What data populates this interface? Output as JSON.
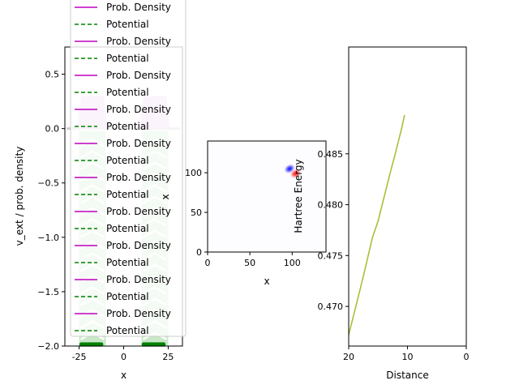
{
  "chart_data": [
    {
      "type": "line",
      "xlabel": "x",
      "ylabel": "v_ext / prob. density",
      "xlim": [
        -33,
        33
      ],
      "ylim": [
        -2.0,
        0.75
      ],
      "xticks": [
        -25,
        0,
        25
      ],
      "yticks": [
        0.5,
        0.0,
        -0.5,
        -1.0,
        -1.5,
        -2.0
      ],
      "ytick_labels": [
        "0.5",
        "0.0",
        "−0.5",
        "−1.0",
        "−1.5",
        "−2.0"
      ],
      "wells": [
        {
          "x_left": -25,
          "x_right": -10,
          "depth": -2.0,
          "density_peak": 0.3
        },
        {
          "x_left": 10,
          "x_right": 25,
          "depth": -2.0,
          "density_peak": 0.3
        }
      ],
      "baseline": 0.0,
      "legend": {
        "placement": "upper-left",
        "entries": [
          {
            "label": "Prob. Density",
            "color": "#bf00bf",
            "style": "solid"
          },
          {
            "label": "Potential",
            "color": "#008000",
            "style": "dashed"
          },
          {
            "label": "Prob. Density",
            "color": "#bf00bf",
            "style": "solid"
          },
          {
            "label": "Potential",
            "color": "#008000",
            "style": "dashed"
          },
          {
            "label": "Prob. Density",
            "color": "#bf00bf",
            "style": "solid"
          },
          {
            "label": "Potential",
            "color": "#008000",
            "style": "dashed"
          },
          {
            "label": "Prob. Density",
            "color": "#bf00bf",
            "style": "solid"
          },
          {
            "label": "Potential",
            "color": "#008000",
            "style": "dashed"
          },
          {
            "label": "Prob. Density",
            "color": "#bf00bf",
            "style": "solid"
          },
          {
            "label": "Potential",
            "color": "#008000",
            "style": "dashed"
          },
          {
            "label": "Prob. Density",
            "color": "#bf00bf",
            "style": "solid"
          },
          {
            "label": "Potential",
            "color": "#008000",
            "style": "dashed"
          },
          {
            "label": "Prob. Density",
            "color": "#bf00bf",
            "style": "solid"
          },
          {
            "label": "Potential",
            "color": "#008000",
            "style": "dashed"
          },
          {
            "label": "Prob. Density",
            "color": "#bf00bf",
            "style": "solid"
          },
          {
            "label": "Potential",
            "color": "#008000",
            "style": "dashed"
          },
          {
            "label": "Prob. Density",
            "color": "#bf00bf",
            "style": "solid"
          },
          {
            "label": "Potential",
            "color": "#008000",
            "style": "dashed"
          },
          {
            "label": "Prob. Density",
            "color": "#bf00bf",
            "style": "solid"
          },
          {
            "label": "Potential",
            "color": "#008000",
            "style": "dashed"
          }
        ]
      }
    },
    {
      "type": "heatmap",
      "xlabel": "x",
      "ylabel": "x",
      "xlim": [
        0,
        140
      ],
      "ylim": [
        0,
        140
      ],
      "xticks": [
        0,
        50,
        100
      ],
      "yticks": [
        0,
        50,
        100
      ],
      "blobs": [
        {
          "x": 97,
          "y": 105,
          "sign": "negative",
          "color": "#0000ff"
        },
        {
          "x": 104,
          "y": 99,
          "sign": "positive",
          "color": "#ff0000"
        }
      ]
    },
    {
      "type": "line",
      "xlabel": "Distance",
      "ylabel": "Hartree Energy",
      "xlim": [
        20,
        0
      ],
      "ylim": [
        0.4661,
        0.4955
      ],
      "xticks": [
        20,
        10,
        0
      ],
      "yticks": [
        0.47,
        0.475,
        0.48,
        0.485
      ],
      "ytick_labels": [
        "0.470",
        "0.475",
        "0.480",
        "0.485"
      ],
      "series": [
        {
          "color": "#8a8a2a",
          "x": [
            20,
            19,
            18,
            17,
            16,
            15,
            14,
            13,
            12,
            11,
            10.5
          ],
          "y": [
            0.4672,
            0.4695,
            0.4718,
            0.4742,
            0.4767,
            0.4784,
            0.4807,
            0.483,
            0.4852,
            0.4875,
            0.4888
          ]
        }
      ]
    }
  ]
}
